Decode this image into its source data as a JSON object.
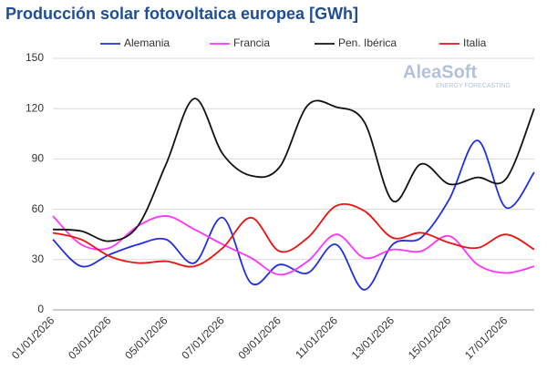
{
  "chart_data": {
    "type": "line",
    "title": "Producción solar fotovoltaica europea [GWh]",
    "watermark": {
      "name": "AleaSoft",
      "tagline": "ENERGY FORECASTING"
    },
    "categories": [
      "01/01/2026",
      null,
      "03/01/2026",
      null,
      "05/01/2026",
      null,
      "07/01/2026",
      null,
      "09/01/2026",
      null,
      "11/01/2026",
      null,
      "13/01/2026",
      null,
      "15/01/2026",
      null,
      "17/01/2026",
      null
    ],
    "series": [
      {
        "name": "Alemania",
        "color": "#1f2fe0",
        "values": [
          42,
          26,
          33,
          39,
          42,
          28,
          55,
          16,
          27,
          22,
          39,
          12,
          39,
          43,
          66,
          101,
          61,
          82
        ]
      },
      {
        "name": "Francia",
        "color": "#ff33ff",
        "values": [
          56,
          39,
          37,
          50,
          56,
          48,
          39,
          31,
          21,
          29,
          45,
          31,
          36,
          35,
          44,
          27,
          22,
          26
        ]
      },
      {
        "name": "Pen. Ibérica",
        "color": "#111111",
        "values": [
          48,
          47,
          41,
          50,
          87,
          126,
          93,
          80,
          85,
          122,
          121,
          112,
          65,
          87,
          75,
          79,
          78,
          120
        ]
      },
      {
        "name": "Italia",
        "color": "#ee1111",
        "values": [
          46,
          42,
          32,
          28,
          29,
          26,
          37,
          55,
          35,
          43,
          62,
          59,
          43,
          46,
          40,
          37,
          45,
          36
        ]
      }
    ],
    "ylim": [
      0,
      150
    ],
    "yticks": [
      0,
      30,
      60,
      90,
      120,
      150
    ],
    "grid": true,
    "smooth": true,
    "legend": "top"
  }
}
